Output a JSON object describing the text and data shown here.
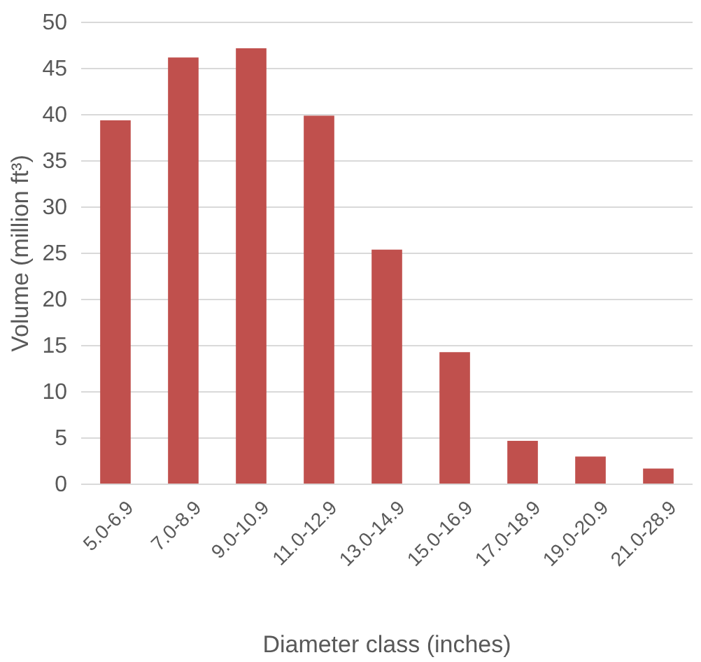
{
  "chart_data": {
    "type": "bar",
    "xlabel": "Diameter class (inches)",
    "ylabel": "Volume (million ft³)",
    "categories": [
      "5.0-6.9",
      "7.0-8.9",
      "9.0-10.9",
      "11.0-12.9",
      "13.0-14.9",
      "15.0-16.9",
      "17.0-18.9",
      "19.0-20.9",
      "21.0-28.9"
    ],
    "values": [
      39.4,
      46.2,
      47.2,
      39.9,
      25.4,
      14.3,
      4.7,
      3.0,
      1.7
    ],
    "color": "#c0504d",
    "ylim": [
      0,
      50
    ],
    "yticks": [
      0,
      5,
      10,
      15,
      20,
      25,
      30,
      35,
      40,
      45,
      50
    ],
    "grid": "y"
  }
}
